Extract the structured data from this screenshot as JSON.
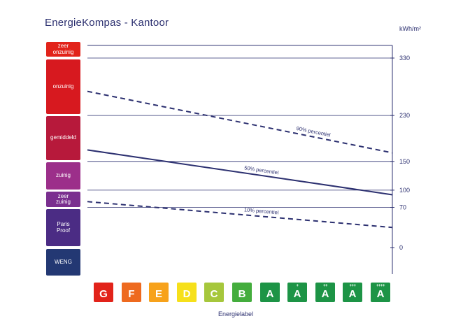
{
  "chart_data": {
    "type": "line",
    "title": "EnergieKompas - Kantoor",
    "ylabel": "kWh/m²",
    "xlabel": "Energielabel",
    "ylim": [
      -40,
      370
    ],
    "yticks": [
      0,
      70,
      100,
      150,
      230,
      330
    ],
    "grid": true,
    "categories": [
      "G",
      "F",
      "E",
      "D",
      "C",
      "B",
      "A",
      "A",
      "A",
      "A",
      "A"
    ],
    "category_superscripts": [
      "",
      "",
      "",
      "",
      "",
      "",
      "",
      "+",
      "++",
      "+++",
      "++++"
    ],
    "category_colors": [
      "#e2231a",
      "#ee6a1f",
      "#f7a21b",
      "#f6e01b",
      "#a6c73c",
      "#44ad3d",
      "#1d9446",
      "#1d9446",
      "#1d9446",
      "#1d9446",
      "#1d9446"
    ],
    "bands": [
      {
        "label": "zeer\nonzuinig",
        "color": "#e2231a"
      },
      {
        "label": "onzuinig",
        "color": "#d7191f"
      },
      {
        "label": "gemiddeld",
        "color": "#b7193b"
      },
      {
        "label": "zuinig",
        "color": "#9c2f8a"
      },
      {
        "label": "zeer\nzuinig",
        "color": "#7a2f8f"
      },
      {
        "label": "Paris\nProof",
        "color": "#4b2c84"
      },
      {
        "label": "WENG",
        "color": "#233873"
      }
    ],
    "series": [
      {
        "name": "90% percentiel",
        "style": "dashed",
        "x": [
          0,
          10
        ],
        "values": [
          272,
          165
        ]
      },
      {
        "name": "50% percentiel",
        "style": "solid",
        "x": [
          0,
          10
        ],
        "values": [
          170,
          92
        ]
      },
      {
        "name": "10% percentiel",
        "style": "dashed",
        "x": [
          0,
          10
        ],
        "values": [
          80,
          35
        ]
      }
    ]
  }
}
